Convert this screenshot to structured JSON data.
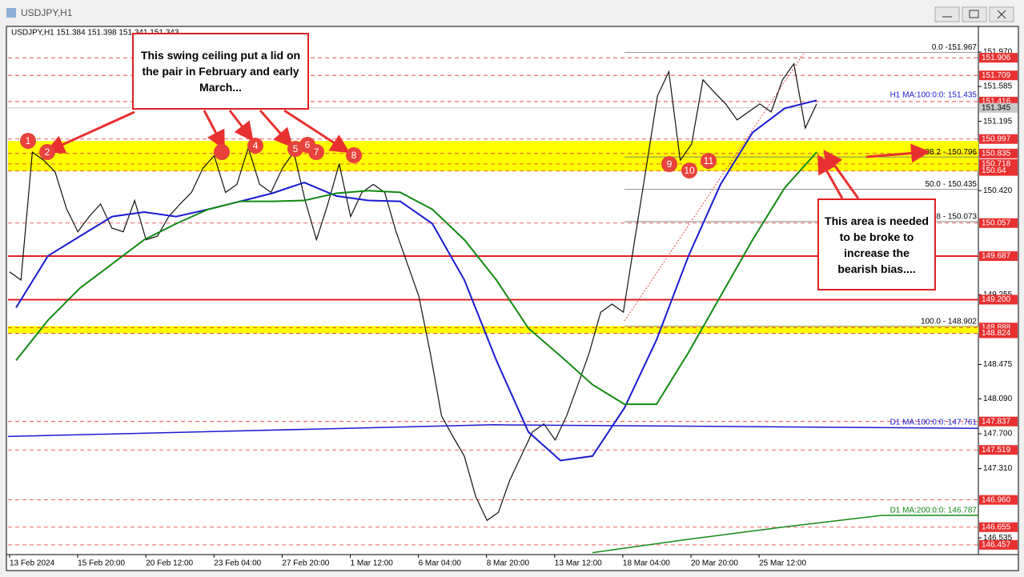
{
  "window": {
    "title": "USDJPY,H1"
  },
  "chart_data": {
    "type": "line",
    "header": "USDJPY,H1  151.384 151.398 151.341 151.343",
    "ylim": [
      146.375,
      152.239
    ],
    "yticks": [
      {
        "value": 151.97,
        "label": "151.970"
      },
      151.585,
      151.195,
      {
        "value": 150.42,
        "label": "150.420"
      },
      149.255,
      148.475,
      {
        "value": 148.09,
        "label": "148.090"
      },
      {
        "value": 147.7,
        "label": "147.700"
      },
      {
        "value": 147.31,
        "label": "147.310"
      },
      146.535
    ],
    "x_labels": [
      "13 Feb 2024",
      "15 Feb 20:00",
      "20 Feb 12:00",
      "23 Feb 04:00",
      "27 Feb 20:00",
      "1 Mar 12:00",
      "6 Mar 04:00",
      "8 Mar 20:00",
      "13 Mar 12:00",
      "18 Mar 04:00",
      "20 Mar 20:00",
      "25 Mar 12:00"
    ],
    "price": {
      "color": "#111111",
      "values": [
        149.51,
        149.42,
        150.85,
        150.76,
        150.63,
        150.22,
        149.96,
        150.13,
        150.27,
        150.0,
        149.96,
        150.31,
        149.87,
        149.91,
        150.13,
        150.27,
        150.4,
        150.67,
        150.81,
        150.4,
        150.49,
        150.9,
        150.49,
        150.4,
        150.67,
        150.85,
        150.31,
        149.87,
        150.27,
        150.72,
        150.13,
        150.4,
        150.49,
        150.4,
        149.96,
        149.6,
        149.24,
        148.61,
        147.9,
        147.67,
        147.45,
        147.0,
        146.73,
        146.82,
        147.18,
        147.45,
        147.72,
        147.81,
        147.63,
        147.9,
        148.25,
        148.61,
        149.06,
        149.15,
        149.06,
        149.87,
        150.67,
        151.48,
        151.75,
        150.76,
        150.94,
        151.66,
        151.52,
        151.39,
        151.21,
        151.3,
        151.39,
        151.3,
        151.66,
        151.84,
        151.12,
        151.39
      ]
    },
    "ma_lines": [
      {
        "label": "H1 MA:100:0:0: 151.435",
        "color": "#1a1ad0",
        "values": [
          149.11,
          149.69,
          149.91,
          150.13,
          150.18,
          150.13,
          150.21,
          150.3,
          150.39,
          150.51,
          150.36,
          150.31,
          150.3,
          150.05,
          149.42,
          148.52,
          147.72,
          147.4,
          147.45,
          147.99,
          148.75,
          149.69,
          150.49,
          151.07,
          151.34,
          151.43
        ]
      },
      {
        "color": "#138a13",
        "values": [
          148.52,
          148.97,
          149.33,
          149.6,
          149.87,
          150.05,
          150.21,
          150.3,
          150.3,
          150.31,
          150.39,
          150.42,
          150.4,
          150.21,
          149.87,
          149.42,
          148.88,
          148.57,
          148.25,
          148.03,
          148.03,
          148.61,
          149.24,
          149.87,
          150.45,
          150.85
        ]
      },
      {
        "label": "D1 MA:100:0:0: 147.761",
        "color": "#1a1ad0",
        "values": [
          147.67,
          147.8,
          147.761
        ]
      },
      {
        "label": "D1 MA:200:0:0: 146.787",
        "color": "#138a13",
        "values": [
          146.37,
          146.52,
          146.66,
          146.787,
          146.787
        ]
      }
    ],
    "zones": [
      [
        150.64,
        150.975
      ],
      [
        148.824,
        148.905
      ]
    ],
    "support_lines": [
      149.687,
      149.2
    ],
    "price_labels": [
      151.906,
      151.709,
      151.416,
      150.997,
      150.835,
      150.718,
      150.64,
      150.057,
      149.687,
      {
        "value": 149.2,
        "label": "149.200"
      },
      148.888,
      148.824,
      147.837,
      147.519,
      {
        "value": 146.96,
        "label": "146.960"
      },
      146.655,
      146.457
    ],
    "current_price": 151.345,
    "fib_levels": [
      {
        "label": "0.0 -151.967",
        "value": 151.967
      },
      {
        "label": "38.2 - 150.796",
        "value": 150.796
      },
      {
        "label": "50.0 - 150.435",
        "value": 150.435
      },
      {
        "label": ".8 - 150.073",
        "value": 150.073
      },
      {
        "label": "100.0 - 148.902",
        "value": 148.902
      }
    ],
    "markers": [
      "1",
      "2",
      null,
      "4",
      "5",
      "6",
      "7",
      "8",
      "9",
      "10",
      "11"
    ],
    "annotations": [
      "This swing ceiling put a lid on the pair in February and early March...",
      "This area is needed to be broke to increase the bearish bias...."
    ]
  }
}
